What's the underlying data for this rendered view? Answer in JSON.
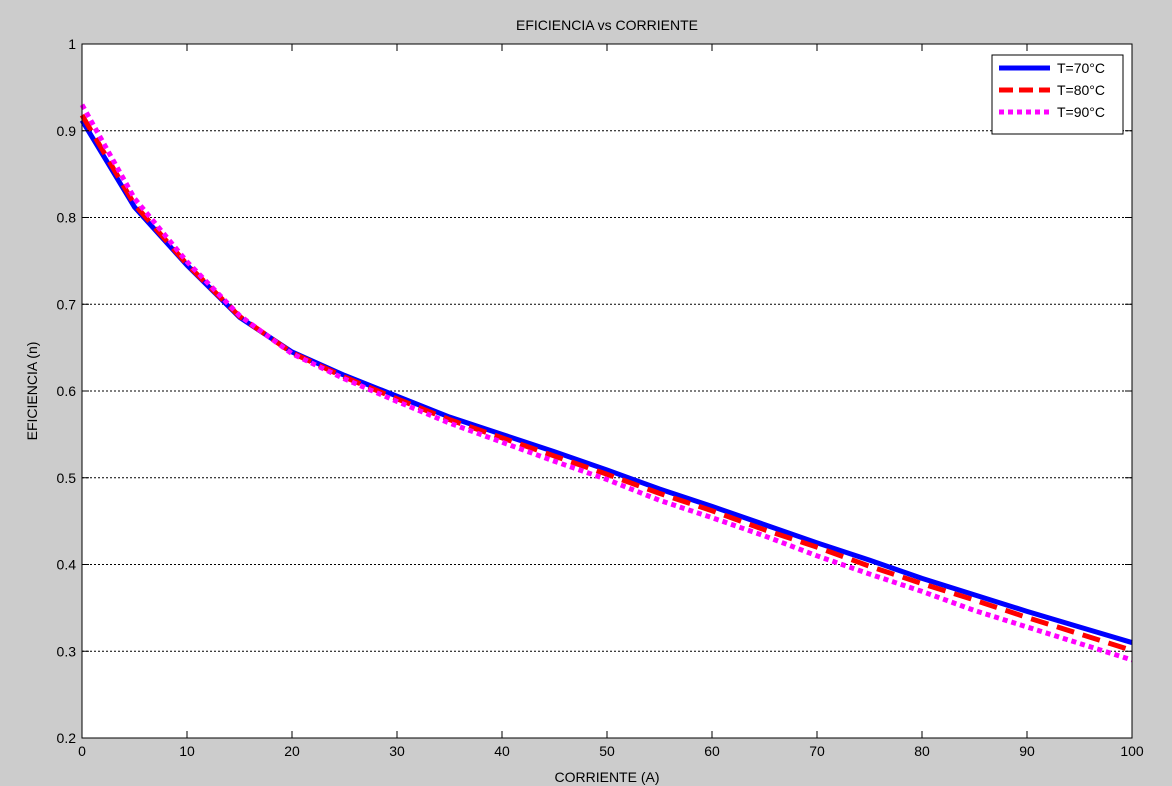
{
  "chart_data": {
    "type": "line",
    "title": "EFICIENCIA vs CORRIENTE",
    "xlabel": "CORRIENTE (A)",
    "ylabel": "EFICIENCIA (n)",
    "xlim": [
      0,
      100
    ],
    "ylim": [
      0.2,
      1
    ],
    "xticks": [
      0,
      10,
      20,
      30,
      40,
      50,
      60,
      70,
      80,
      90,
      100
    ],
    "yticks": [
      0.2,
      0.3,
      0.4,
      0.5,
      0.6,
      0.7,
      0.8,
      0.9,
      1
    ],
    "ytick_labels": [
      "0.2",
      "0.3",
      "0.4",
      "0.5",
      "0.6",
      "0.7",
      "0.8",
      "0.9",
      "1"
    ],
    "grid": "horizontal dotted",
    "legend_position": "top-right",
    "x": [
      0,
      5,
      10,
      15,
      20,
      25,
      30,
      35,
      40,
      45,
      50,
      55,
      60,
      65,
      70,
      75,
      80,
      85,
      90,
      95,
      100
    ],
    "series": [
      {
        "name": "T=70°C",
        "color": "#0000ff",
        "style": "solid",
        "values": [
          0.912,
          0.812,
          0.745,
          0.685,
          0.645,
          0.618,
          0.594,
          0.57,
          0.55,
          0.53,
          0.509,
          0.487,
          0.467,
          0.446,
          0.425,
          0.405,
          0.384,
          0.365,
          0.346,
          0.328,
          0.31
        ]
      },
      {
        "name": "T=80°C",
        "color": "#ff0000",
        "style": "dashed",
        "values": [
          0.918,
          0.815,
          0.746,
          0.686,
          0.644,
          0.616,
          0.591,
          0.567,
          0.546,
          0.525,
          0.504,
          0.482,
          0.462,
          0.44,
          0.42,
          0.398,
          0.378,
          0.359,
          0.339,
          0.32,
          0.301
        ]
      },
      {
        "name": "T=90°C",
        "color": "#ff00ff",
        "style": "dotted",
        "values": [
          0.93,
          0.822,
          0.749,
          0.687,
          0.643,
          0.614,
          0.588,
          0.563,
          0.541,
          0.519,
          0.498,
          0.474,
          0.454,
          0.433,
          0.41,
          0.389,
          0.369,
          0.347,
          0.328,
          0.309,
          0.29
        ]
      }
    ]
  }
}
